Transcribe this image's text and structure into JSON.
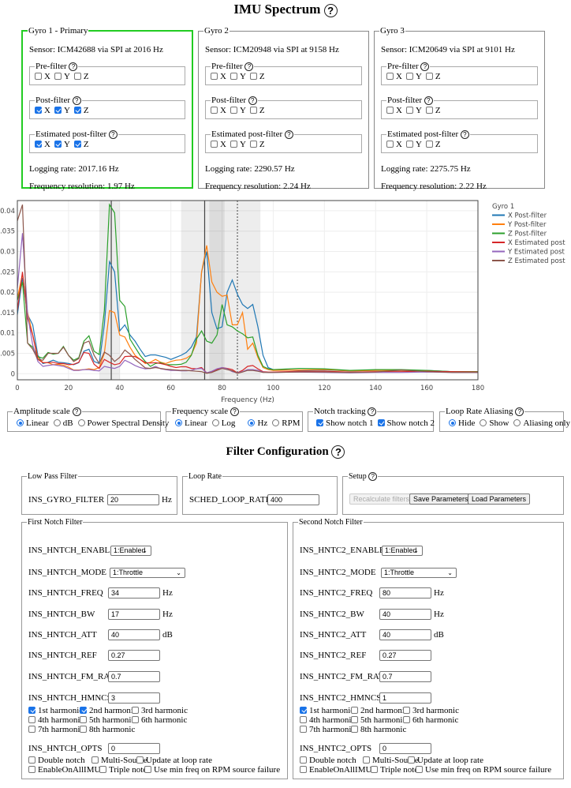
{
  "title": "IMU Spectrum",
  "help_glyph": "?",
  "gyros": [
    {
      "legend": "Gyro 1 - Primary",
      "sensor": "Sensor: ICM42688 via SPI at 2016 Hz",
      "pre": [
        false,
        false,
        false
      ],
      "post": [
        true,
        true,
        true
      ],
      "est": [
        true,
        true,
        true
      ],
      "logging_rate": "Logging rate: 2017.16 Hz",
      "freq_res": "Frequency resolution: 1.97 Hz"
    },
    {
      "legend": "Gyro 2",
      "sensor": "Sensor: ICM20948 via SPI at 9158 Hz",
      "pre": [
        false,
        false,
        false
      ],
      "post": [
        false,
        false,
        false
      ],
      "est": [
        false,
        false,
        false
      ],
      "logging_rate": "Logging rate: 2290.57 Hz",
      "freq_res": "Frequency resolution: 2.24 Hz"
    },
    {
      "legend": "Gyro 3",
      "sensor": "Sensor: ICM20649 via SPI at 9101 Hz",
      "pre": [
        false,
        false,
        false
      ],
      "post": [
        false,
        false,
        false
      ],
      "est": [
        false,
        false,
        false
      ],
      "logging_rate": "Logging rate: 2275.75 Hz",
      "freq_res": "Frequency resolution: 2.22 Hz"
    }
  ],
  "gyro_sub": {
    "pre": "Pre-filter",
    "post": "Post-filter",
    "est": "Estimated post-filter",
    "axes": [
      "X",
      "Y",
      "Z"
    ]
  },
  "chart_data": {
    "type": "line",
    "title": "",
    "xlabel": "Frequency (Hz)",
    "ylabel": "Amplitude",
    "xlim": [
      0,
      180
    ],
    "ylim": [
      -0.0015,
      0.0425
    ],
    "x_ticks": [
      0,
      20,
      40,
      60,
      80,
      100,
      120,
      140,
      160,
      180
    ],
    "y_ticks": [
      0,
      0.005,
      0.01,
      0.015,
      0.02,
      0.025,
      0.03,
      0.035,
      0.04
    ],
    "y_tick_labels": [
      "0",
      "0.005",
      "0.01",
      "0.015",
      "0.02",
      "0.025",
      "0.03",
      "0.035",
      "0.04"
    ],
    "grid": true,
    "legend_title": "Gyro 1",
    "legend_position": "right",
    "notch_bands": [
      {
        "from": 32,
        "to": 40
      },
      {
        "from": 64,
        "to": 95
      },
      {
        "from": 75,
        "to": 81
      }
    ],
    "notch_lines": [
      {
        "x": 36.7,
        "style": "solid"
      },
      {
        "x": 73.2,
        "style": "solid"
      },
      {
        "x": 86,
        "style": "dotted"
      }
    ],
    "x": [
      0,
      2,
      4,
      6,
      8,
      10,
      12,
      14,
      16,
      18,
      20,
      22,
      24,
      26,
      28,
      30,
      32,
      34,
      36,
      38,
      40,
      42,
      44,
      46,
      48,
      50,
      52,
      54,
      56,
      58,
      60,
      62,
      64,
      66,
      68,
      70,
      72,
      74,
      76,
      78,
      80,
      82,
      84,
      86,
      88,
      90,
      92,
      94,
      96,
      98,
      100,
      110,
      120,
      130,
      140,
      150,
      160,
      170,
      180
    ],
    "series": [
      {
        "name": "X Post-filter",
        "color": "#1f77b4",
        "values": [
          0.0145,
          0.0235,
          0.0145,
          0.012,
          0.0045,
          0.0025,
          0.0028,
          0.0033,
          0.0028,
          0.0027,
          0.0025,
          0.0022,
          0.0027,
          0.0055,
          0.006,
          0.003,
          0.0025,
          0.012,
          0.0275,
          0.025,
          0.0105,
          0.012,
          0.0095,
          0.008,
          0.006,
          0.0042,
          0.0046,
          0.0046,
          0.0043,
          0.004,
          0.0035,
          0.004,
          0.0045,
          0.0052,
          0.0065,
          0.009,
          0.025,
          0.03,
          0.015,
          0.011,
          0.0115,
          0.02,
          0.023,
          0.0195,
          0.017,
          0.016,
          0.017,
          0.0115,
          0.0045,
          0.0015,
          0.001,
          0.0008,
          0.0009,
          0.0007,
          0.0008,
          0.0008,
          0.0008,
          0.0005,
          0.0005
        ]
      },
      {
        "name": "Y Post-filter",
        "color": "#ff7f0e",
        "values": [
          0.0185,
          0.0245,
          0.015,
          0.0095,
          0.004,
          0.0027,
          0.0027,
          0.0022,
          0.0023,
          0.0021,
          0.0016,
          0.0009,
          0.0009,
          0.001,
          0.0012,
          0.001,
          0.0015,
          0.005,
          0.0155,
          0.015,
          0.0095,
          0.009,
          0.0065,
          0.0045,
          0.0035,
          0.0025,
          0.0028,
          0.0035,
          0.0028,
          0.0025,
          0.003,
          0.0033,
          0.0034,
          0.0038,
          0.0046,
          0.0075,
          0.025,
          0.0315,
          0.0225,
          0.02,
          0.019,
          0.0193,
          0.012,
          0.012,
          0.015,
          0.006,
          0.0075,
          0.004,
          0.0015,
          0.001,
          0.0008,
          0.0009,
          0.001,
          0.0007,
          0.0008,
          0.0008,
          0.0007,
          0.0005,
          0.0005
        ]
      },
      {
        "name": "Z Post-filter",
        "color": "#2ca02c",
        "values": [
          0.018,
          0.0225,
          0.0075,
          0.0065,
          0.0042,
          0.0038,
          0.0052,
          0.0048,
          0.005,
          0.0067,
          0.0045,
          0.0033,
          0.0039,
          0.008,
          0.0093,
          0.0055,
          0.0047,
          0.0155,
          0.0415,
          0.0395,
          0.018,
          0.0165,
          0.0085,
          0.0065,
          0.0045,
          0.003,
          0.0018,
          0.0025,
          0.0027,
          0.0022,
          0.0022,
          0.0022,
          0.0023,
          0.0028,
          0.0045,
          0.0085,
          0.0105,
          0.008,
          0.0075,
          0.0095,
          0.017,
          0.012,
          0.0115,
          0.0105,
          0.0098,
          0.0088,
          0.009,
          0.0045,
          0.0018,
          0.0012,
          0.001,
          0.0013,
          0.0012,
          0.0008,
          0.001,
          0.001,
          0.0008,
          0.0005,
          0.0005
        ]
      },
      {
        "name": "X Estimated post",
        "color": "#d62728",
        "values": [
          0.0155,
          0.025,
          0.0135,
          0.0095,
          0.0035,
          0.0027,
          0.0027,
          0.0028,
          0.0025,
          0.0025,
          0.0022,
          0.0023,
          0.0028,
          0.0052,
          0.005,
          0.0023,
          0.0013,
          0.0035,
          0.0028,
          0.0022,
          0.0025,
          0.0042,
          0.0043,
          0.0042,
          0.0035,
          0.0027,
          0.0026,
          0.0027,
          0.0025,
          0.0022,
          0.0018,
          0.0015,
          0.0017,
          0.0017,
          0.0013,
          0.0012,
          0.0015,
          0.0002,
          0.0005,
          0.001,
          0.0015,
          0.0013,
          0.001,
          0.0002,
          0.0008,
          0.0018,
          0.002,
          0.0012,
          0.0005,
          0.0004,
          0.0004,
          0.0006,
          0.0006,
          0.0004,
          0.0005,
          0.0005,
          0.0006,
          0.0005,
          0.0004
        ]
      },
      {
        "name": "Y Estimated post",
        "color": "#9467bd",
        "values": [
          0.021,
          0.0345,
          0.0145,
          0.007,
          0.003,
          0.0018,
          0.002,
          0.0022,
          0.002,
          0.0018,
          0.0013,
          0.0008,
          0.0008,
          0.001,
          0.001,
          0.0008,
          0.0007,
          0.0018,
          0.0015,
          0.0013,
          0.0018,
          0.0033,
          0.0027,
          0.002,
          0.0015,
          0.0012,
          0.0013,
          0.0018,
          0.0012,
          0.001,
          0.0008,
          0.0008,
          0.0007,
          0.0007,
          0.0008,
          0.0012,
          0.0013,
          0.0002,
          0.0006,
          0.0012,
          0.0015,
          0.0012,
          0.0005,
          0.0002,
          0.0005,
          0.001,
          0.001,
          0.0008,
          0.0004,
          0.0003,
          0.0003,
          0.0004,
          0.0003,
          0.0002,
          0.0003,
          0.0003,
          0.0004,
          0.0003,
          0.0003
        ]
      },
      {
        "name": "Z Estimated post",
        "color": "#8c564b",
        "values": [
          0.0375,
          0.0415,
          0.0075,
          0.006,
          0.0035,
          0.0033,
          0.005,
          0.005,
          0.005,
          0.0065,
          0.0045,
          0.003,
          0.0037,
          0.0075,
          0.008,
          0.0045,
          0.0025,
          0.0053,
          0.0045,
          0.003,
          0.004,
          0.0058,
          0.0048,
          0.0035,
          0.0025,
          0.0014,
          0.0013,
          0.0015,
          0.0013,
          0.0011,
          0.001,
          0.0009,
          0.0008,
          0.0008,
          0.0007,
          0.0006,
          0.0005,
          0.0001,
          0.0003,
          0.0008,
          0.0013,
          0.001,
          0.0007,
          0.0001,
          0.0004,
          0.0008,
          0.0008,
          0.0006,
          0.0003,
          0.0003,
          0.0003,
          0.0004,
          0.0004,
          0.0003,
          0.0004,
          0.0009,
          0.0005,
          0.0003,
          0.0003
        ]
      }
    ]
  },
  "controls": {
    "amplitude": {
      "legend": "Amplitude scale",
      "options": [
        "Linear",
        "dB",
        "Power Spectral Density"
      ],
      "selected": 0
    },
    "frequency": {
      "legend": "Frequency scale",
      "options": [
        "Linear",
        "Log"
      ],
      "selected": 0,
      "unit_options": [
        "Hz",
        "RPM"
      ],
      "unit_selected": 0
    },
    "notch": {
      "legend": "Notch tracking",
      "options": [
        "Show notch 1",
        "Show notch 2"
      ],
      "checked": [
        true,
        true
      ]
    },
    "aliasing": {
      "legend": "Loop Rate Aliasing",
      "options": [
        "Hide",
        "Show",
        "Aliasing only"
      ],
      "selected": 0
    }
  },
  "filter_title": "Filter Configuration",
  "lpf": {
    "legend": "Low Pass Filter",
    "param": "INS_GYRO_FILTER",
    "value": "20",
    "unit": "Hz"
  },
  "loop": {
    "legend": "Loop Rate",
    "param": "SCHED_LOOP_RATE",
    "value": "400"
  },
  "setup": {
    "legend": "Setup",
    "recalc": "Recalculate filters",
    "save": "Save Parameters",
    "load": "Load Parameters"
  },
  "notches": [
    {
      "legend": "First Notch Filter",
      "enable": {
        "param": "INS_HNTCH_ENABLE",
        "value": "1:Enabled"
      },
      "mode": {
        "param": "INS_HNTCH_MODE",
        "value": "1:Throttle"
      },
      "freq": {
        "param": "INS_HNTCH_FREQ",
        "value": "34",
        "unit": "Hz"
      },
      "bw": {
        "param": "INS_HNTCH_BW",
        "value": "17",
        "unit": "Hz"
      },
      "att": {
        "param": "INS_HNTCH_ATT",
        "value": "40",
        "unit": "dB"
      },
      "ref": {
        "param": "INS_HNTCH_REF",
        "value": "0.27"
      },
      "fmrat": {
        "param": "INS_HNTCH_FM_RAT",
        "value": "0.7"
      },
      "hmncs": {
        "param": "INS_HNTCH_HMNCS",
        "value": "3"
      },
      "harmonics": [
        "1st harmonic",
        "2nd harmonic",
        "3rd harmonic",
        "4th harmonic",
        "5th harmonic",
        "6th harmonic",
        "7th harmonic",
        "8th harmonic"
      ],
      "harmonics_checked": [
        true,
        true,
        false,
        false,
        false,
        false,
        false,
        false
      ],
      "opts": {
        "param": "INS_HNTCH_OPTS",
        "value": "0"
      },
      "opt_labels": [
        "Double notch",
        "Multi-Source",
        "Update at loop rate",
        "EnableOnAllIMUs",
        "Triple notch",
        "Use min freq on RPM source failure"
      ],
      "opt_checked": [
        false,
        false,
        false,
        false,
        false,
        false
      ]
    },
    {
      "legend": "Second Notch Filter",
      "enable": {
        "param": "INS_HNTC2_ENABLE",
        "value": "1:Enabled"
      },
      "mode": {
        "param": "INS_HNTC2_MODE",
        "value": "1:Throttle"
      },
      "freq": {
        "param": "INS_HNTC2_FREQ",
        "value": "80",
        "unit": "Hz"
      },
      "bw": {
        "param": "INS_HNTC2_BW",
        "value": "40",
        "unit": "Hz"
      },
      "att": {
        "param": "INS_HNTC2_ATT",
        "value": "40",
        "unit": "dB"
      },
      "ref": {
        "param": "INS_HNTC2_REF",
        "value": "0.27"
      },
      "fmrat": {
        "param": "INS_HNTC2_FM_RAT",
        "value": "0.7"
      },
      "hmncs": {
        "param": "INS_HNTC2_HMNCS",
        "value": "1"
      },
      "harmonics": [
        "1st harmonic",
        "2nd harmonic",
        "3rd harmonic",
        "4th harmonic",
        "5th harmonic",
        "6th harmonic",
        "7th harmonic",
        "8th harmonic"
      ],
      "harmonics_checked": [
        true,
        false,
        false,
        false,
        false,
        false,
        false,
        false
      ],
      "opts": {
        "param": "INS_HNTC2_OPTS",
        "value": "0"
      },
      "opt_labels": [
        "Double notch",
        "Multi-Source",
        "Update at loop rate",
        "EnableOnAllIMUs",
        "Triple notch",
        "Use min freq on RPM source failure"
      ],
      "opt_checked": [
        false,
        false,
        false,
        false,
        false,
        false
      ]
    }
  ]
}
